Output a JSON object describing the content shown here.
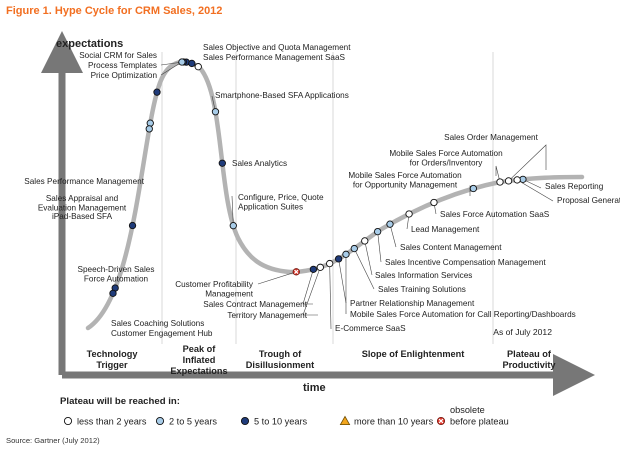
{
  "title": "Figure 1. Hype Cycle for CRM Sales, 2012",
  "source": "Source: Gartner (July 2012)",
  "as_of": "As of July 2012",
  "colors": {
    "title": "#f26f21",
    "curve": "#b3b3b3",
    "axis": "#666666",
    "under_2": "#ffffff",
    "2_to_5": "#a8cce8",
    "5_to_10": "#1f3b7a",
    "more_than_10": "#f2a61d",
    "obsolete": "#e03a2e"
  },
  "chart_data": {
    "type": "scatter",
    "title": "Figure 1. Hype Cycle for CRM Sales, 2012",
    "ylabel": "expectations",
    "xlabel": "time",
    "phases": [
      {
        "lines": [
          "Technology",
          "Trigger"
        ]
      },
      {
        "lines": [
          "Peak of",
          "Inflated",
          "Expectations"
        ]
      },
      {
        "lines": [
          "Trough of",
          "Disillusionment"
        ]
      },
      {
        "lines": [
          "Slope of Enlightenment"
        ]
      },
      {
        "lines": [
          "Plateau of",
          "Productivity"
        ]
      }
    ],
    "legend": {
      "title": "Plateau will be reached in:",
      "items": [
        {
          "key": "under_2",
          "label": "less than 2 years"
        },
        {
          "key": "2_to_5",
          "label": "2 to 5 years"
        },
        {
          "key": "5_to_10",
          "label": "5 to 10 years"
        },
        {
          "key": "more_than_10",
          "label": "more than 10 years"
        },
        {
          "key": "obsolete",
          "label_top": "obsolete",
          "label": "before plateau"
        }
      ]
    },
    "points": [
      {
        "lines": [
          "Sales Coaching Solutions"
        ],
        "x": 5.5,
        "plateau": "5_to_10"
      },
      {
        "lines": [
          "Customer Engagement Hub"
        ],
        "x": 5.0,
        "plateau": "5_to_10"
      },
      {
        "lines": [
          "Speech-Driven Sales",
          "Force Automation"
        ],
        "x": 9.0,
        "plateau": "5_to_10"
      },
      {
        "lines": [
          "Sales Appraisal and",
          "Evaluation Management"
        ],
        "x": 12.6,
        "plateau": "2_to_5"
      },
      {
        "lines": [
          "iPad-Based SFA"
        ],
        "x": 12.4,
        "plateau": "2_to_5"
      },
      {
        "lines": [
          "Sales Performance Management"
        ],
        "x": 14.0,
        "plateau": "5_to_10"
      },
      {
        "lines": [
          "Social CRM for Sales"
        ],
        "x": 19.9,
        "plateau": "5_to_10"
      },
      {
        "lines": [
          "Process Templates"
        ],
        "x": 19.4,
        "plateau": "5_to_10"
      },
      {
        "lines": [
          "Price Optimization"
        ],
        "x": 19.0,
        "plateau": "2_to_5"
      },
      {
        "lines": [
          "Sales Objective and Quota Management"
        ],
        "x": 21.0,
        "plateau": "5_to_10"
      },
      {
        "lines": [
          "Sales Performance Management SaaS"
        ],
        "x": 22.4,
        "plateau": "under_2"
      },
      {
        "lines": [
          "Smartphone-Based SFA Applications"
        ],
        "x": 25.8,
        "plateau": "2_to_5"
      },
      {
        "lines": [
          "Sales Analytics"
        ],
        "x": 27.2,
        "plateau": "5_to_10"
      },
      {
        "lines": [
          "Configure, Price, Quote",
          "Application Suites"
        ],
        "x": 29.4,
        "plateau": "2_to_5"
      },
      {
        "lines": [
          "Customer Profitability",
          "Management"
        ],
        "x": 42.2,
        "plateau": "obsolete"
      },
      {
        "lines": [
          "Sales Contract Management"
        ],
        "x": 45.6,
        "plateau": "5_to_10"
      },
      {
        "lines": [
          "Territory Management"
        ],
        "x": 47.0,
        "plateau": "under_2"
      },
      {
        "lines": [
          "E-Commerce SaaS"
        ],
        "x": 48.8,
        "plateau": "under_2"
      },
      {
        "lines": [
          "Partner Relationship Management"
        ],
        "x": 50.8,
        "plateau": "5_to_10"
      },
      {
        "lines": [
          "Mobile Sales Force Automation for Call Reporting/Dashboards"
        ],
        "x": 52.2,
        "plateau": "2_to_5"
      },
      {
        "lines": [
          "Sales Training Solutions"
        ],
        "x": 53.8,
        "plateau": "2_to_5"
      },
      {
        "lines": [
          "Sales Information Services"
        ],
        "x": 56.0,
        "plateau": "under_2"
      },
      {
        "lines": [
          "Sales Incentive Compensation Management"
        ],
        "x": 58.6,
        "plateau": "2_to_5"
      },
      {
        "lines": [
          "Sales Content Management"
        ],
        "x": 61.2,
        "plateau": "2_to_5"
      },
      {
        "lines": [
          "Lead Management"
        ],
        "x": 65.0,
        "plateau": "under_2"
      },
      {
        "lines": [
          "Sales Force Automation SaaS"
        ],
        "x": 70.0,
        "plateau": "under_2"
      },
      {
        "lines": [
          "Mobile Sales Force Automation",
          "for Opportunity Management"
        ],
        "x": 78.0,
        "plateau": "2_to_5"
      },
      {
        "lines": [
          "Mobile Sales Force Automation",
          "for Orders/Inventory"
        ],
        "x": 83.4,
        "plateau": "under_2"
      },
      {
        "lines": [
          "Sales Order Management"
        ],
        "x": 85.2,
        "plateau": "under_2"
      },
      {
        "lines": [
          "Sales Reporting"
        ],
        "x": 88.0,
        "plateau": "2_to_5"
      },
      {
        "lines": [
          "Proposal Generation"
        ],
        "x": 87.0,
        "plateau": "under_2"
      }
    ]
  }
}
